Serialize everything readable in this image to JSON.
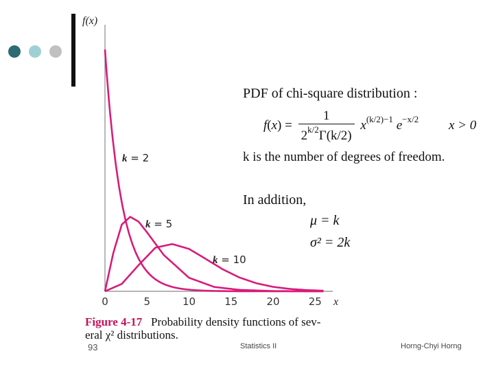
{
  "decor": {
    "dot_colors": [
      "#2e6b72",
      "#9fd0d4",
      "#c0c0c0"
    ]
  },
  "chart_data": {
    "type": "line",
    "xlabel": "x",
    "ylabel": "f(x)",
    "xlim": [
      0,
      28
    ],
    "ylim": [
      0,
      0.5
    ],
    "x_ticks": [
      "0",
      "5",
      "10",
      "15",
      "20",
      "25"
    ],
    "x_tick_values": [
      0,
      5,
      10,
      15,
      20,
      25
    ],
    "line_color": "#d81b7a",
    "series": [
      {
        "name": "k = 2",
        "k_symbol": "k",
        "k_text": " = 2",
        "k": 2,
        "points": [
          [
            0,
            0.5
          ],
          [
            1,
            0.303
          ],
          [
            2,
            0.184
          ],
          [
            3,
            0.112
          ],
          [
            4,
            0.068
          ],
          [
            6,
            0.025
          ],
          [
            8,
            0.009
          ],
          [
            10,
            0.003
          ],
          [
            15,
            0.0003
          ],
          [
            20,
            2e-05
          ],
          [
            26,
            0
          ]
        ]
      },
      {
        "name": "k = 5",
        "k_symbol": "k",
        "k_text": " = 5",
        "k": 5,
        "points": [
          [
            0,
            0
          ],
          [
            1,
            0.08
          ],
          [
            2,
            0.138
          ],
          [
            3,
            0.154
          ],
          [
            4,
            0.144
          ],
          [
            5,
            0.122
          ],
          [
            7,
            0.075
          ],
          [
            10,
            0.028
          ],
          [
            13,
            0.009
          ],
          [
            16,
            0.003
          ],
          [
            20,
            0.0005
          ],
          [
            26,
            2e-05
          ]
        ]
      },
      {
        "name": "k = 10",
        "k_symbol": "k",
        "k_text": " = 10",
        "k": 10,
        "points": [
          [
            0,
            0
          ],
          [
            2,
            0.0153
          ],
          [
            4,
            0.0541
          ],
          [
            6,
            0.0902
          ],
          [
            8,
            0.0977
          ],
          [
            10,
            0.0877
          ],
          [
            12,
            0.0669
          ],
          [
            14,
            0.0456
          ],
          [
            16,
            0.0286
          ],
          [
            18,
            0.0167
          ],
          [
            20,
            0.0092
          ],
          [
            22,
            0.0049
          ],
          [
            24,
            0.0025
          ],
          [
            26,
            0.0012
          ]
        ]
      }
    ]
  },
  "text": {
    "pdf_title": "PDF of chi-square distribution :",
    "formula": {
      "lhs_f": "f",
      "lhs_x": "x",
      "eq": "=",
      "num": "1",
      "den_base": "2",
      "den_sup": "k/2",
      "den_gamma": "Γ",
      "den_arg": "(k/2)",
      "x_sym": "x",
      "x_sup": "(k/2)−1",
      "e_sym": "e",
      "e_sup": "−x/2"
    },
    "condition": "x > 0",
    "k_desc": "k is the number of degrees of freedom.",
    "addition": "In addition,",
    "mu": "μ = k",
    "sigma": "σ² = 2k"
  },
  "caption": {
    "fig_num": "Figure 4-17",
    "text_line1": "Probability density functions of sev-",
    "text_line2": "eral χ² distributions."
  },
  "footer": {
    "page": "93",
    "title": "Statistics II",
    "author": "Horng-Chyi Horng"
  }
}
